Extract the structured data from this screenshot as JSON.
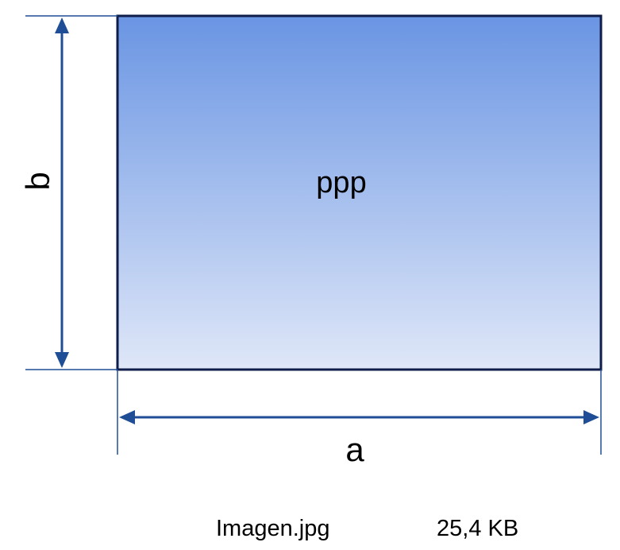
{
  "image": {
    "center_label": "ppp",
    "width_label": "a",
    "height_label": "b"
  },
  "file": {
    "name": "Imagen.jpg",
    "size": "25,4 KB"
  },
  "colors": {
    "frame_border": "#0f1d4a",
    "fill_top": "#6a95e3",
    "fill_bottom": "#dfe7f8",
    "dimension_line": "#1f4e96"
  }
}
